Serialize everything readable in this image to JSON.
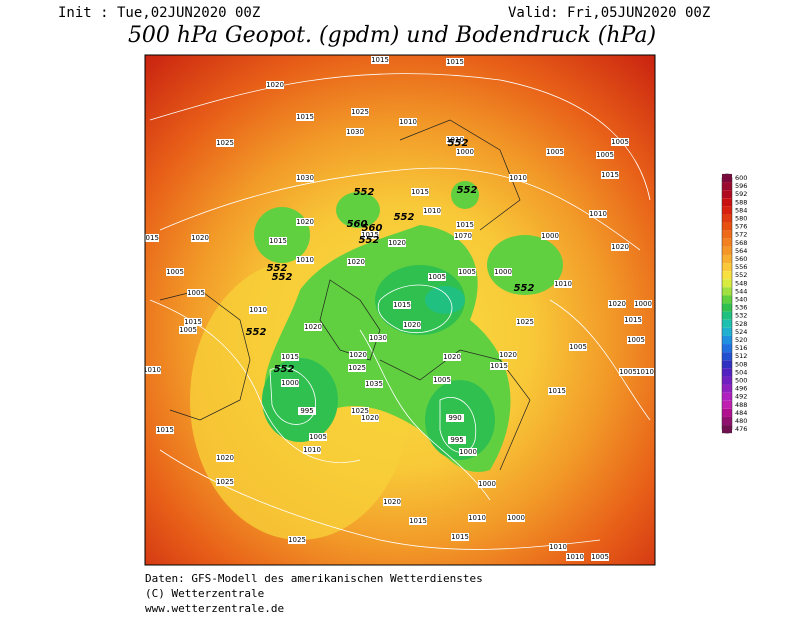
{
  "header": {
    "init": "Init : Tue,02JUN2020 00Z",
    "valid": "Valid: Fri,05JUN2020 00Z",
    "title": "500 hPa Geopot. (gpdm) und Bodendruck (hPa)"
  },
  "colorbar": {
    "labels": [
      600,
      596,
      592,
      588,
      584,
      580,
      576,
      572,
      568,
      564,
      560,
      556,
      552,
      548,
      544,
      540,
      536,
      532,
      528,
      524,
      520,
      516,
      512,
      508,
      504,
      500,
      496,
      492,
      488,
      484,
      480,
      476
    ],
    "colors": [
      "#7a0a3c",
      "#9a0a30",
      "#b00a20",
      "#c81010",
      "#d82010",
      "#e03a10",
      "#e85010",
      "#ee6a18",
      "#f28020",
      "#f59628",
      "#f8ae30",
      "#fac838",
      "#f8e040",
      "#d8ec40",
      "#a0e040",
      "#60d040",
      "#30c050",
      "#20c080",
      "#20c0b0",
      "#20b0d0",
      "#2090e0",
      "#2070e0",
      "#2050d0",
      "#3030c0",
      "#5020c0",
      "#7020c0",
      "#9020c0",
      "#b020c0",
      "#c020b0",
      "#b01090",
      "#901070",
      "#701050"
    ]
  },
  "map": {
    "isobar_labels": [
      "1015",
      "1015",
      "1020",
      "1025",
      "1015",
      "1010",
      "1030",
      "1025",
      "1010",
      "1000",
      "1005",
      "1005",
      "1005",
      "1030",
      "1010",
      "1015",
      "1010",
      "1015",
      "1010",
      "1020",
      "1015",
      "1015",
      "1020",
      "1070",
      "1000",
      "1015",
      "1015",
      "1020",
      "1020",
      "1005",
      "1020",
      "1010",
      "1005",
      "1005",
      "1000",
      "1010",
      "1005",
      "1015",
      "1020",
      "1010",
      "1015",
      "1020",
      "1000",
      "1025",
      "1005",
      "1015",
      "1005",
      "1030",
      "1020",
      "1015",
      "1005",
      "1020",
      "1025",
      "1035",
      "1020",
      "1020",
      "1015",
      "1005",
      "1015",
      "1010",
      "1000",
      "1005",
      "1010",
      "995",
      "1025",
      "1020",
      "990",
      "995",
      "1015",
      "1005",
      "1010",
      "1000",
      "1020",
      "1000",
      "1025",
      "1020",
      "1015",
      "1010",
      "1000",
      "1025",
      "1015",
      "1010",
      "1005",
      "1010"
    ],
    "height_labels": [
      "552",
      "552",
      "552",
      "552",
      "560",
      "552",
      "552",
      "552",
      "552",
      "552",
      "552",
      "560"
    ]
  },
  "footer": {
    "lines": [
      "Daten: GFS-Modell des amerikanischen Wetterdienstes",
      "(C) Wetterzentrale",
      "www.wetterzentrale.de"
    ]
  }
}
